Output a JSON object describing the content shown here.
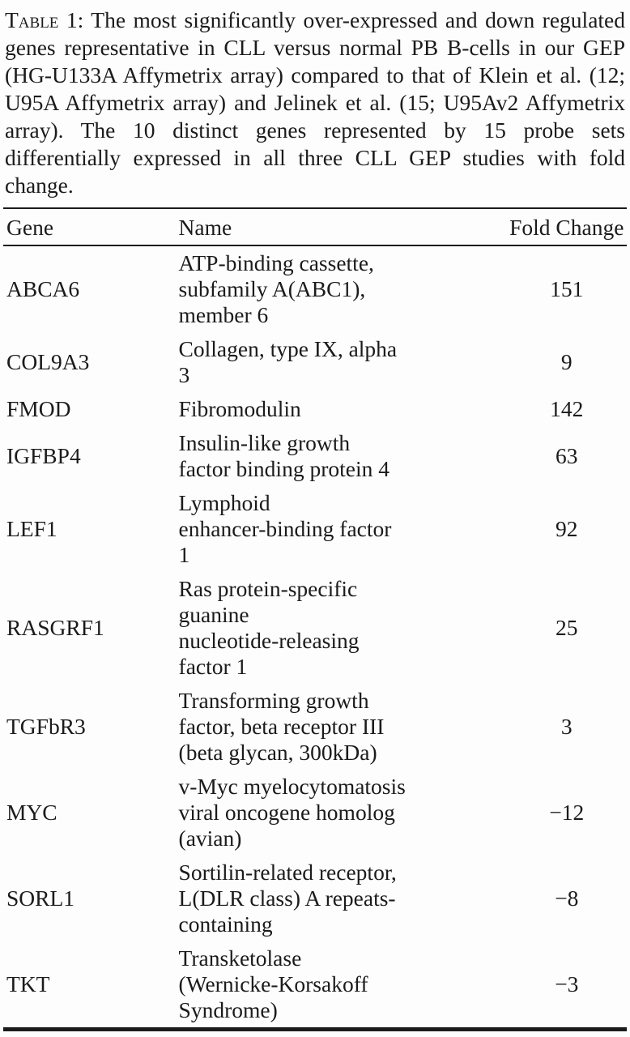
{
  "caption": {
    "label": "Table 1:",
    "text": "The most significantly over-expressed and down regulated genes representative in CLL versus normal PB B-cells in our GEP (HG-U133A Affymetrix array) compared to that of Klein et al. (12; U95A Affymetrix array) and Jelinek et al. (15; U95Av2 Affymetrix array). The 10 distinct genes represented by 15 probe sets differentially expressed in all three CLL GEP studies with fold change."
  },
  "table": {
    "headers": [
      "Gene",
      "Name",
      "Fold Change"
    ],
    "rows": [
      {
        "gene": "ABCA6",
        "name": "ATP-binding cassette,\nsubfamily A(ABC1),\nmember 6",
        "fold_change": "151"
      },
      {
        "gene": "COL9A3",
        "name": "Collagen, type IX, alpha\n3",
        "fold_change": "9"
      },
      {
        "gene": "FMOD",
        "name": "Fibromodulin",
        "fold_change": "142"
      },
      {
        "gene": "IGFBP4",
        "name": "Insulin-like growth\nfactor binding protein 4",
        "fold_change": "63"
      },
      {
        "gene": "LEF1",
        "name": "Lymphoid\nenhancer-binding factor\n1",
        "fold_change": "92"
      },
      {
        "gene": "RASGRF1",
        "name": "Ras protein-specific\nguanine\nnucleotide-releasing\nfactor 1",
        "fold_change": "25"
      },
      {
        "gene": "TGFbR3",
        "name": "Transforming growth\nfactor, beta receptor III\n(beta glycan, 300kDa)",
        "fold_change": "3"
      },
      {
        "gene": "MYC",
        "name": "v-Myc myelocytomatosis\nviral oncogene homolog\n(avian)",
        "fold_change": "−12"
      },
      {
        "gene": "SORL1",
        "name": "Sortilin-related receptor,\nL(DLR class) A repeats-\ncontaining",
        "fold_change": "−8"
      },
      {
        "gene": "TKT",
        "name": "Transketolase\n(Wernicke-Korsakoff\nSyndrome)",
        "fold_change": "−3"
      }
    ],
    "colors": {
      "text": "#1b1b1b",
      "background": "#fdfdfd",
      "rule": "#1b1b1b"
    }
  }
}
